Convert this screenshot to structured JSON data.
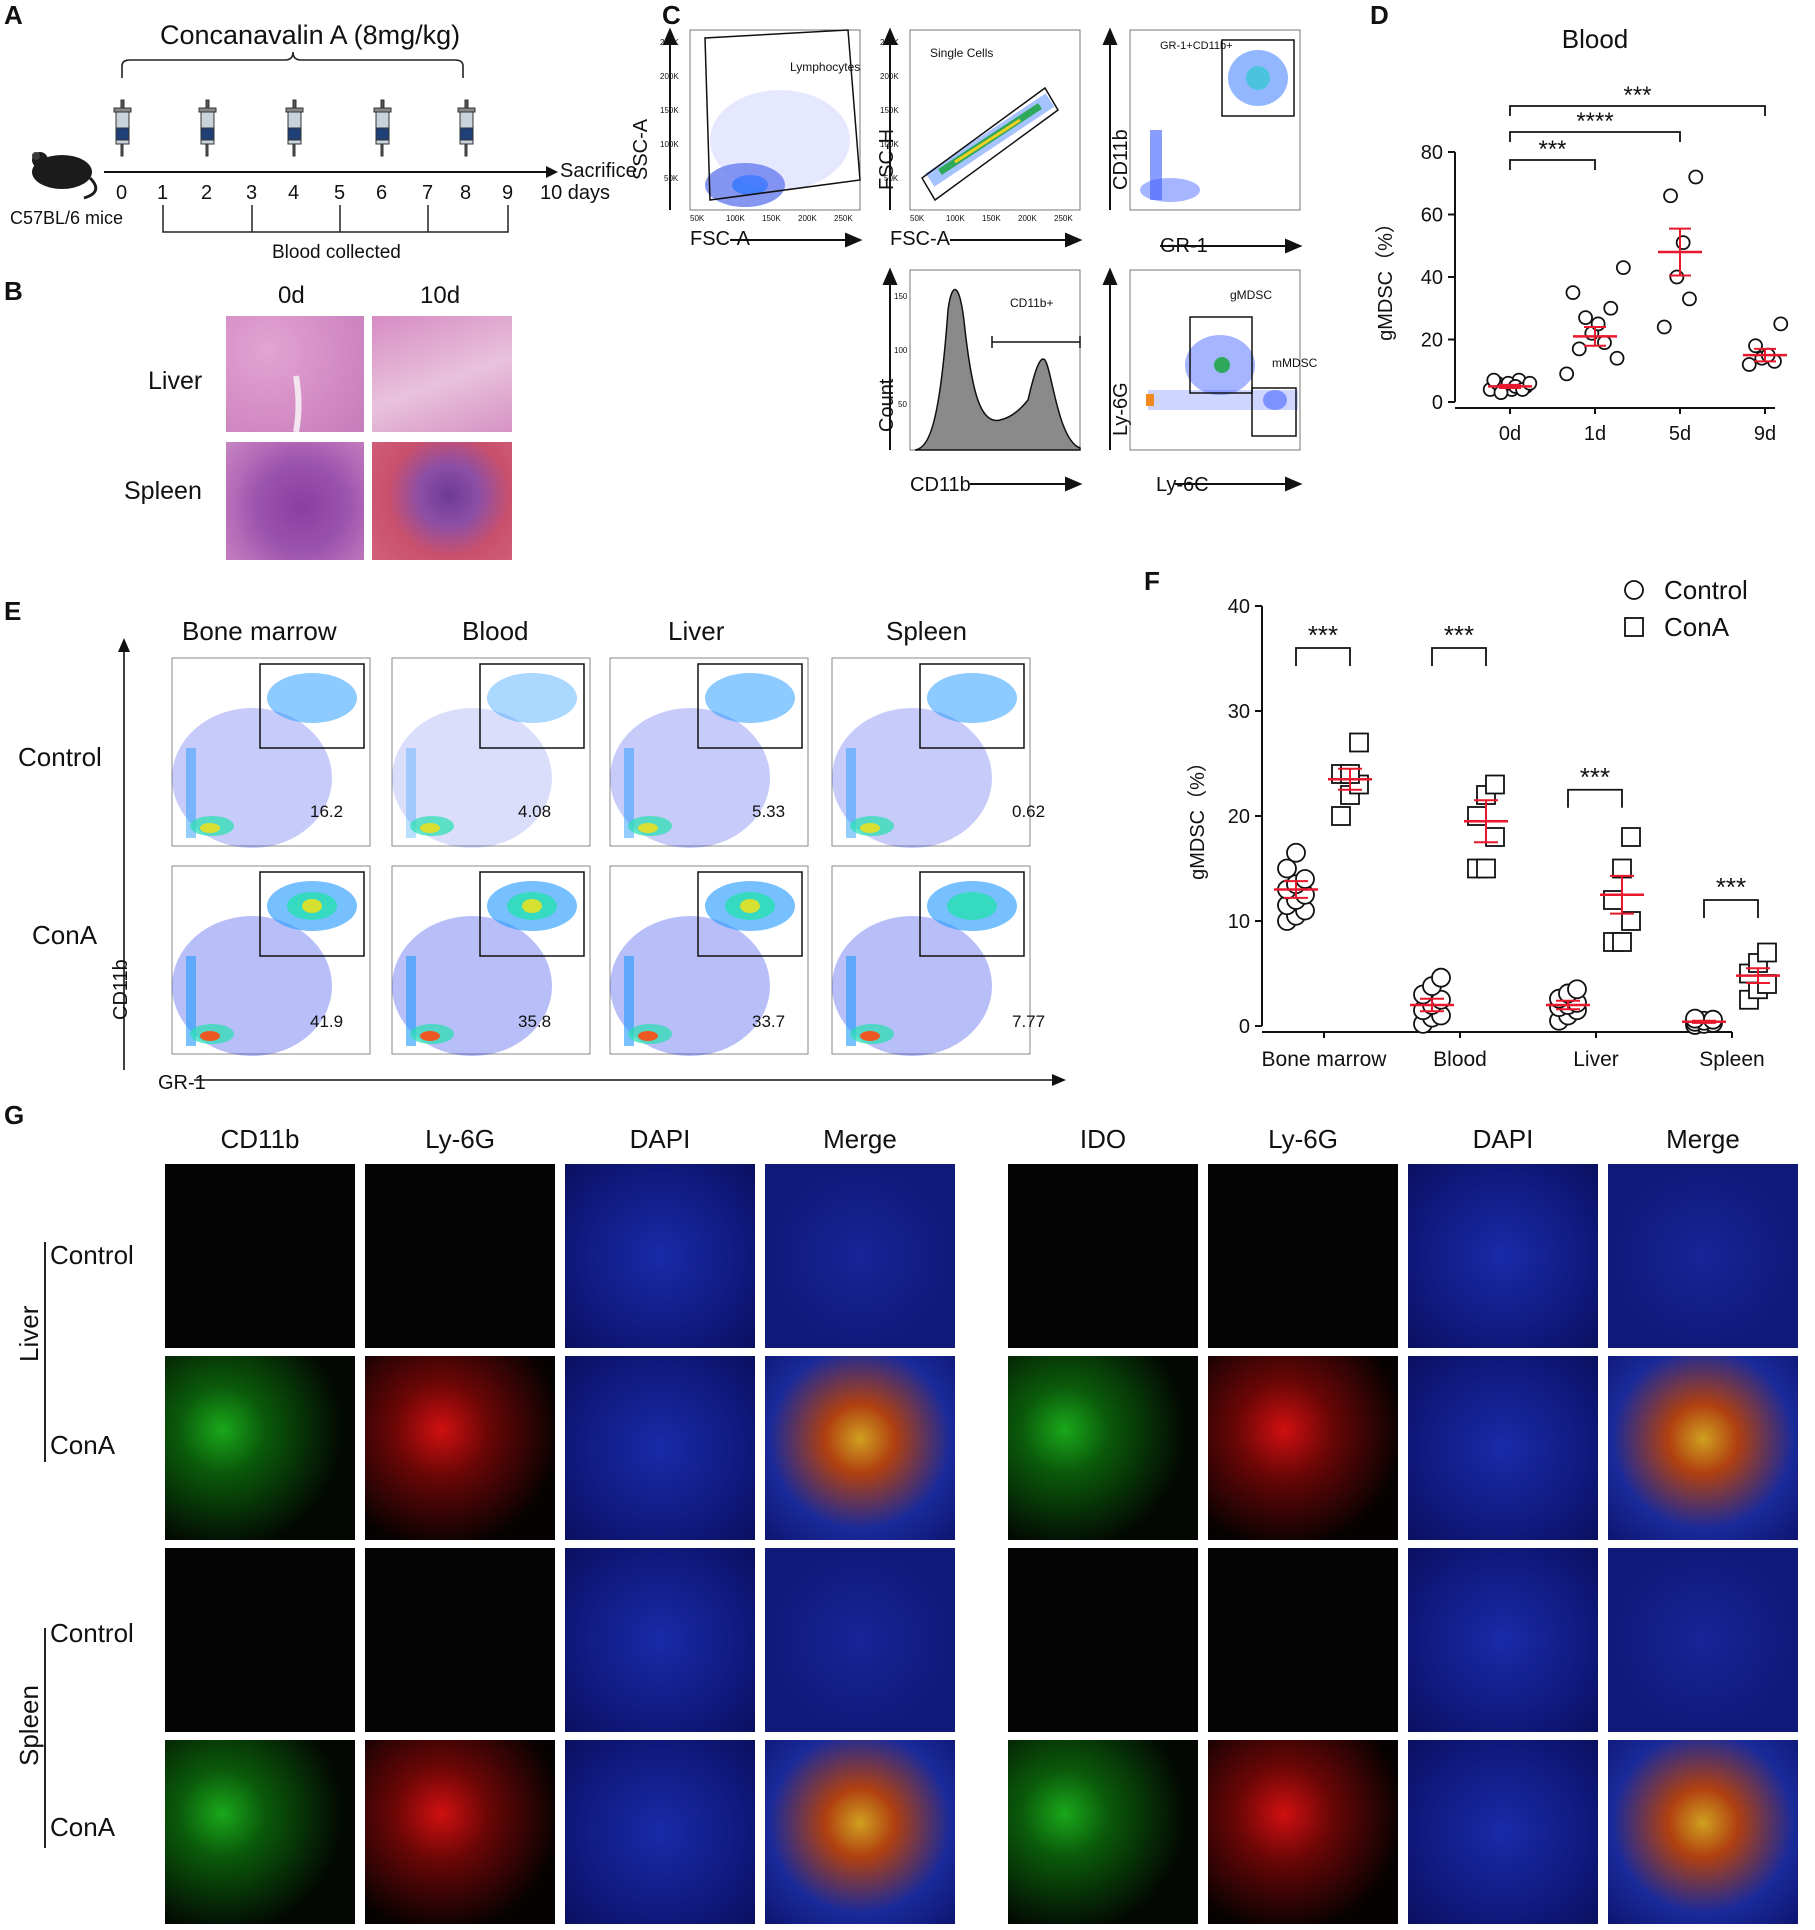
{
  "panel_labels": [
    "A",
    "B",
    "C",
    "D",
    "E",
    "F",
    "G"
  ],
  "panelA": {
    "treatment": "Concanavalin A (8mg/kg)",
    "days": [
      "0",
      "1",
      "2",
      "3",
      "4",
      "5",
      "6",
      "7",
      "8",
      "9"
    ],
    "sacrifice": "Sacrifice",
    "sacrifice_day": "10 days",
    "mouse": "C57BL/6 mice",
    "blood_collected": "Blood collected"
  },
  "panelB": {
    "cols": [
      "0d",
      "10d"
    ],
    "rows": [
      "Liver",
      "Spleen"
    ],
    "colors": {
      "liver": "#d98fc7",
      "spleen": "#b35fb4"
    }
  },
  "panelC": {
    "plots": [
      {
        "x": "FSC-A",
        "y": "SSC-A",
        "gate": "Lymphocytes",
        "xticks": [
          "50K",
          "100K",
          "150K",
          "200K",
          "250K"
        ],
        "yticks": [
          "50K",
          "100K",
          "150K",
          "200K",
          "250K"
        ]
      },
      {
        "x": "FSC-A",
        "y": "FSC-H",
        "gate": "Single Cells",
        "xticks": [
          "50K",
          "100K",
          "150K",
          "200K",
          "250K"
        ],
        "yticks": [
          "50K",
          "100K",
          "150K",
          "200K",
          "250K"
        ]
      },
      {
        "x": "GR-1",
        "y": "CD11b",
        "gate": "GR-1+CD11b+"
      },
      {
        "x": "CD11b",
        "y": "Count",
        "gate": "CD11b+",
        "yticks": [
          "50",
          "100",
          "150"
        ]
      },
      {
        "x": "Ly-6C",
        "y": "Ly-6G",
        "gate": "gMDSC",
        "gate2": "mMDSC"
      }
    ]
  },
  "panelD": {
    "chart_data": {
      "type": "scatter",
      "title": "Blood",
      "ylabel": "gMDSC（%）",
      "categories": [
        "0d",
        "1d",
        "5d",
        "9d"
      ],
      "ylim": [
        0,
        80
      ],
      "yticks": [
        "0",
        "20",
        "40",
        "60",
        "80"
      ],
      "points": [
        [
          4,
          5,
          6,
          7,
          5,
          4,
          6,
          5,
          3,
          4,
          7,
          6
        ],
        [
          9,
          14,
          17,
          19,
          22,
          25,
          27,
          30,
          35,
          43
        ],
        [
          24,
          33,
          40,
          51,
          66,
          72
        ],
        [
          12,
          13,
          14,
          15,
          18,
          25
        ]
      ],
      "means": [
        5,
        21,
        48,
        15
      ],
      "sem": [
        0.5,
        3,
        7.5,
        2
      ],
      "significance": [
        {
          "from": "0d",
          "to": "1d",
          "label": "***"
        },
        {
          "from": "0d",
          "to": "5d",
          "label": "****"
        },
        {
          "from": "0d",
          "to": "9d",
          "label": "***"
        }
      ],
      "accent": "#e8192c"
    }
  },
  "panelE": {
    "tissues": [
      "Bone marrow",
      "Blood",
      "Liver",
      "Spleen"
    ],
    "conditions": [
      "Control",
      "ConA"
    ],
    "values": [
      [
        "16.2",
        "4.08",
        "5.33",
        "0.62"
      ],
      [
        "41.9",
        "35.8",
        "33.7",
        "7.77"
      ]
    ],
    "xlabel": "GR-1",
    "ylabel": "CD11b"
  },
  "panelF": {
    "chart_data": {
      "type": "scatter",
      "ylabel": "gMDSC（%）",
      "categories": [
        "Bone marrow",
        "Blood",
        "Liver",
        "Spleen"
      ],
      "ylim": [
        0,
        40
      ],
      "yticks": [
        "0",
        "10",
        "20",
        "30",
        "40"
      ],
      "series": [
        {
          "name": "Control",
          "marker": "circle",
          "points": [
            [
              10,
              10.5,
              11,
              11.5,
              12,
              12.5,
              13,
              13.5,
              14,
              15,
              16.5
            ],
            [
              0.2,
              0.8,
              1,
              1.5,
              2,
              2.5,
              3,
              3.8,
              4.6
            ],
            [
              0.5,
              1,
              1.5,
              1.8,
              2,
              2.2,
              2.6,
              3.1,
              3.5
            ],
            [
              0.1,
              0.2,
              0.3,
              0.4,
              0.5,
              0.6,
              0.7
            ]
          ],
          "means": [
            13,
            2,
            2,
            0.4
          ],
          "sem": [
            0.8,
            0.6,
            0.4,
            0.1
          ]
        },
        {
          "name": "ConA",
          "marker": "square",
          "points": [
            [
              20,
              22,
              23,
              24,
              24,
              27
            ],
            [
              15,
              15,
              18,
              20,
              22,
              23
            ],
            [
              8,
              8,
              10,
              12,
              15,
              18
            ],
            [
              2.5,
              3.5,
              4,
              5,
              6,
              7
            ]
          ],
          "means": [
            23.5,
            19.5,
            12.5,
            4.8
          ],
          "sem": [
            1,
            2,
            1.8,
            0.7
          ]
        }
      ],
      "significance": [
        "***",
        "***",
        "***",
        "***"
      ],
      "legend": "top-right",
      "accent": "#e8192c"
    }
  },
  "panelG": {
    "left_cols": [
      "CD11b",
      "Ly-6G",
      "DAPI",
      "Merge"
    ],
    "right_cols": [
      "IDO",
      "Ly-6G",
      "DAPI",
      "Merge"
    ],
    "groups": [
      "Liver",
      "Spleen"
    ],
    "rows": [
      "Control",
      "ConA",
      "Control",
      "ConA"
    ]
  }
}
